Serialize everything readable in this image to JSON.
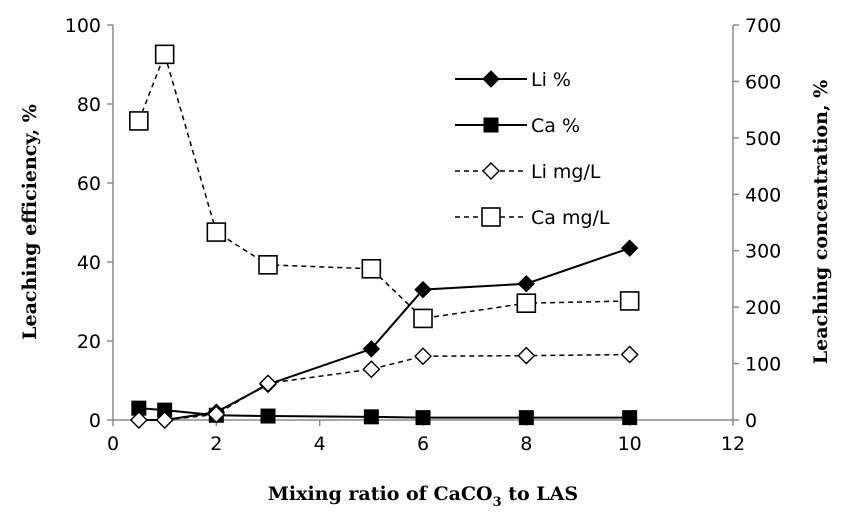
{
  "chart_data": {
    "type": "line",
    "title": "",
    "xlabel": "Mixing ratio of CaCO3 to LAS",
    "xlabel_parts": {
      "pre": "Mixing ratio of CaCO",
      "sub": "3",
      "post": " to LAS"
    },
    "ylabel_left": "Leaching efficiency, %",
    "ylabel_right": "Leaching concentration, %",
    "xlim": [
      0,
      12
    ],
    "ylim_left": [
      0,
      100
    ],
    "ylim_right": [
      0,
      700
    ],
    "x_ticks": [
      "0",
      "2",
      "4",
      "6",
      "8",
      "10",
      "12"
    ],
    "y_left_ticks": [
      "0",
      "20",
      "40",
      "60",
      "80",
      "100"
    ],
    "y_right_ticks": [
      "0",
      "100",
      "200",
      "300",
      "400",
      "500",
      "600",
      "700"
    ],
    "grid": false,
    "legend_position": "top-right",
    "series": [
      {
        "name": "Li %",
        "axis": "left",
        "style": "solid",
        "marker": "diamond-filled",
        "x": [
          0.5,
          1,
          2,
          3,
          5,
          6,
          8,
          10
        ],
        "y": [
          0,
          0,
          2,
          9,
          18,
          33,
          34.5,
          43.5
        ]
      },
      {
        "name": "Ca %",
        "axis": "left",
        "style": "solid",
        "marker": "square-filled",
        "x": [
          0.5,
          1,
          2,
          3,
          5,
          6,
          8,
          10
        ],
        "y": [
          3,
          2.5,
          1.2,
          1,
          0.8,
          0.6,
          0.6,
          0.6
        ]
      },
      {
        "name": "Li mg/L",
        "axis": "right",
        "style": "dashed",
        "marker": "diamond-open",
        "x": [
          0.5,
          1,
          2,
          3,
          5,
          6,
          8,
          10
        ],
        "y": [
          0,
          0,
          10,
          65,
          90,
          113,
          114,
          116
        ]
      },
      {
        "name": "Ca mg/L",
        "axis": "right",
        "style": "dashed",
        "marker": "square-open",
        "x": [
          0.5,
          1,
          2,
          3,
          5,
          6,
          8,
          10
        ],
        "y": [
          530,
          648,
          333,
          275,
          268,
          180,
          207,
          211
        ]
      }
    ]
  }
}
